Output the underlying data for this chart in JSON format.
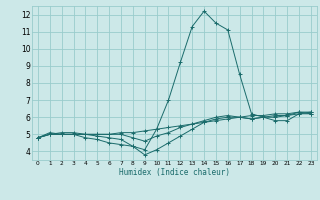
{
  "title": "",
  "xlabel": "Humidex (Indice chaleur)",
  "bg_color": "#cce8e8",
  "grid_color": "#99cccc",
  "line_color": "#1a6b6b",
  "xlim": [
    -0.5,
    23.5
  ],
  "ylim": [
    3.5,
    12.5
  ],
  "yticks": [
    4,
    5,
    6,
    7,
    8,
    9,
    10,
    11,
    12
  ],
  "hours": [
    0,
    1,
    2,
    3,
    4,
    5,
    6,
    7,
    8,
    9,
    10,
    11,
    12,
    13,
    14,
    15,
    16,
    17,
    18,
    19,
    20,
    21,
    22,
    23
  ],
  "series": [
    [
      4.8,
      5.1,
      5.0,
      5.0,
      4.8,
      4.7,
      4.5,
      4.4,
      4.3,
      4.1,
      5.3,
      7.0,
      9.2,
      11.3,
      12.2,
      11.5,
      11.1,
      8.5,
      6.2,
      6.0,
      5.8,
      5.8,
      6.2,
      6.3
    ],
    [
      4.8,
      5.0,
      5.0,
      5.0,
      5.0,
      5.0,
      5.0,
      5.1,
      5.1,
      5.2,
      5.3,
      5.4,
      5.5,
      5.6,
      5.7,
      5.8,
      5.9,
      6.0,
      6.1,
      6.1,
      6.2,
      6.2,
      6.3,
      6.3
    ],
    [
      4.8,
      5.0,
      5.1,
      5.1,
      5.0,
      5.0,
      5.0,
      5.0,
      4.8,
      4.6,
      4.9,
      5.1,
      5.4,
      5.6,
      5.8,
      6.0,
      6.1,
      6.0,
      5.9,
      6.0,
      6.1,
      6.1,
      6.2,
      6.2
    ],
    [
      4.8,
      5.0,
      5.0,
      5.0,
      5.0,
      4.9,
      4.8,
      4.7,
      4.3,
      3.8,
      4.1,
      4.5,
      4.9,
      5.3,
      5.7,
      5.9,
      6.0,
      6.0,
      5.9,
      6.0,
      6.0,
      6.1,
      6.3,
      6.2
    ]
  ]
}
